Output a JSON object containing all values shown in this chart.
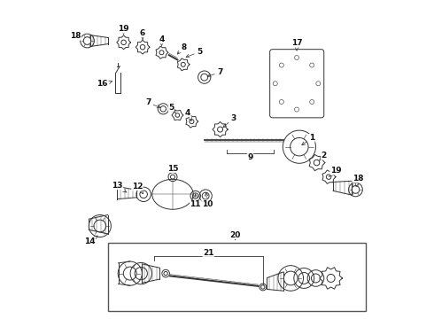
{
  "bg_color": "#ffffff",
  "line_color": "#333333",
  "fig_width": 4.9,
  "fig_height": 3.6,
  "dpi": 100
}
